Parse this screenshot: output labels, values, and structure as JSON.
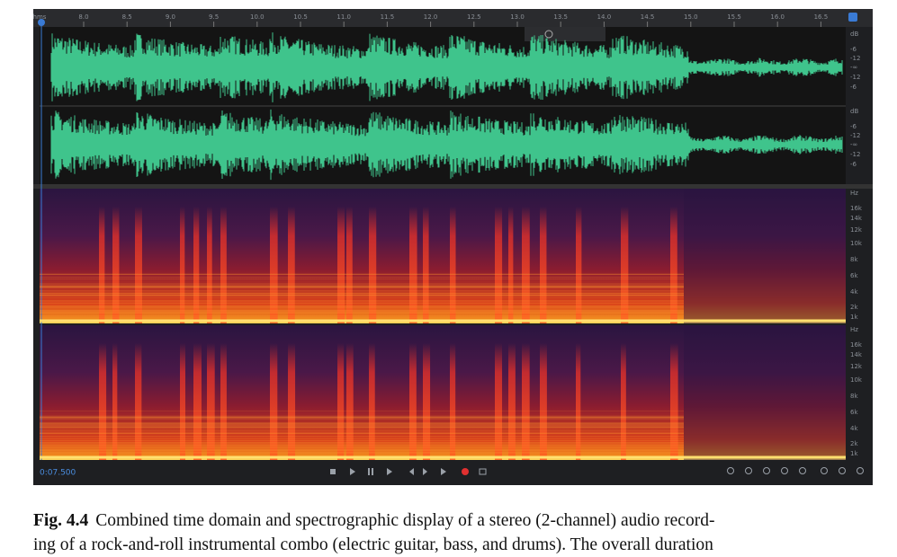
{
  "ruler": {
    "labels": [
      "hms",
      "8.0",
      "8.5",
      "9.0",
      "9.5",
      "10.0",
      "10.5",
      "11.0",
      "11.5",
      "12.0",
      "12.5",
      "13.0",
      "13.5",
      "14.0",
      "14.5",
      "15.0",
      "15.5",
      "16.0",
      "16.5"
    ]
  },
  "waveform": {
    "channels": [
      {
        "db_labels": [
          "dB",
          "-6",
          "-12",
          "-∞",
          "-12",
          "-6"
        ]
      },
      {
        "db_labels": [
          "dB",
          "-6",
          "-12",
          "-∞",
          "-12",
          "-6"
        ]
      }
    ]
  },
  "spectrogram": {
    "channels": [
      {
        "hz_labels": [
          "Hz",
          "16k",
          "14k",
          "12k",
          "10k",
          "8k",
          "6k",
          "4k",
          "2k",
          "1k"
        ]
      },
      {
        "hz_labels": [
          "Hz",
          "16k",
          "14k",
          "12k",
          "10k",
          "8k",
          "6k",
          "4k",
          "2k",
          "1k"
        ]
      }
    ]
  },
  "transport": {
    "timecode": "0:07.500"
  },
  "caption": {
    "label": "Fig. 4.4",
    "lines": [
      "Combined time domain and spectrographic display of a stereo (2-channel) audio record-",
      "ing of a rock-and-roll instrumental combo (electric guitar, bass, and drums). The overall duration"
    ]
  }
}
